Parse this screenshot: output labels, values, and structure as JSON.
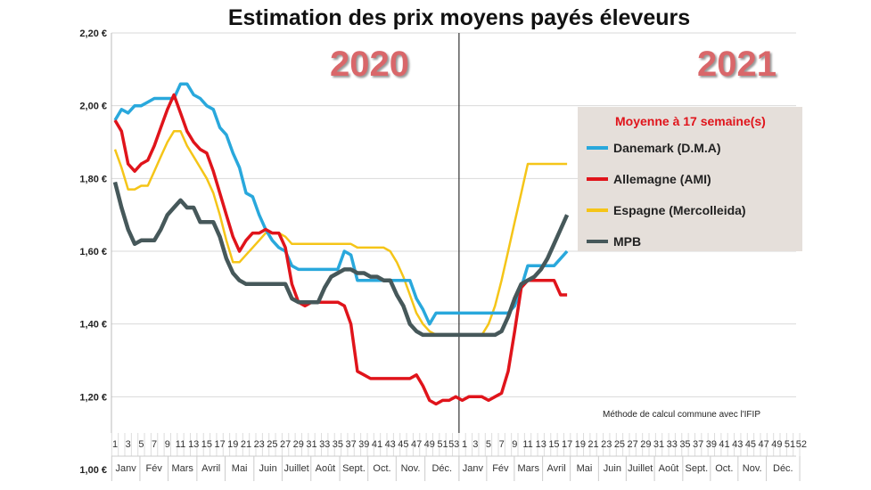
{
  "chart_data": {
    "type": "line",
    "title": "Estimation des prix moyens payés éleveurs",
    "year_labels": [
      "2020",
      "2021"
    ],
    "legend_title": "Moyenne à 17 semaine(s)",
    "legend_placement": "right",
    "annotation": "Méthode de calcul commune avec l'IFIP",
    "ylim": [
      1.0,
      2.2
    ],
    "yticks": [
      "1,00 €",
      "1,20 €",
      "1,40 €",
      "1,60 €",
      "1,80 €",
      "2,00 €",
      "2,20 €"
    ],
    "weeks_2020": 53,
    "weeks_2021": 52,
    "xtick_labels_2020": [
      "1",
      "3",
      "5",
      "7",
      "9",
      "11",
      "13",
      "15",
      "17",
      "19",
      "21",
      "23",
      "25",
      "27",
      "29",
      "31",
      "33",
      "35",
      "37",
      "39",
      "41",
      "43",
      "45",
      "47",
      "49",
      "51",
      "53"
    ],
    "xtick_labels_2021": [
      "1",
      "3",
      "5",
      "7",
      "9",
      "11",
      "13",
      "15",
      "17",
      "19",
      "21",
      "23",
      "25",
      "27",
      "29",
      "31",
      "33",
      "35",
      "37",
      "39",
      "41",
      "43",
      "45",
      "47",
      "49",
      "51",
      "52"
    ],
    "months": [
      "Janv",
      "Fév",
      "Mars",
      "Avril",
      "Mai",
      "Juin",
      "Juillet",
      "Août",
      "Sept.",
      "Oct.",
      "Nov.",
      "Déc."
    ],
    "series": [
      {
        "name": "Danemark (D.M.A)",
        "color": "#29a8dc",
        "values": [
          1.96,
          1.99,
          1.98,
          2.0,
          2.0,
          2.01,
          2.02,
          2.02,
          2.02,
          2.02,
          2.06,
          2.06,
          2.03,
          2.02,
          2.0,
          1.99,
          1.94,
          1.92,
          1.87,
          1.83,
          1.76,
          1.75,
          1.7,
          1.66,
          1.63,
          1.61,
          1.6,
          1.56,
          1.55,
          1.55,
          1.55,
          1.55,
          1.55,
          1.55,
          1.55,
          1.6,
          1.59,
          1.52,
          1.52,
          1.52,
          1.52,
          1.52,
          1.52,
          1.52,
          1.52,
          1.52,
          1.47,
          1.44,
          1.4,
          1.43,
          1.43,
          1.43,
          1.43,
          1.43,
          1.43,
          1.43,
          1.43,
          1.43,
          1.43,
          1.43,
          1.43,
          1.45,
          1.5,
          1.56,
          1.56,
          1.56,
          1.56,
          1.56,
          1.58,
          1.6
        ]
      },
      {
        "name": "Allemagne (AMI)",
        "color": "#e0141b",
        "values": [
          1.96,
          1.93,
          1.84,
          1.82,
          1.84,
          1.85,
          1.89,
          1.94,
          1.99,
          2.03,
          1.98,
          1.93,
          1.9,
          1.88,
          1.87,
          1.82,
          1.76,
          1.7,
          1.64,
          1.6,
          1.63,
          1.65,
          1.65,
          1.66,
          1.65,
          1.65,
          1.61,
          1.51,
          1.46,
          1.45,
          1.46,
          1.46,
          1.46,
          1.46,
          1.46,
          1.45,
          1.4,
          1.27,
          1.26,
          1.25,
          1.25,
          1.25,
          1.25,
          1.25,
          1.25,
          1.25,
          1.26,
          1.23,
          1.19,
          1.18,
          1.19,
          1.19,
          1.2,
          1.19,
          1.2,
          1.2,
          1.2,
          1.19,
          1.2,
          1.21,
          1.27,
          1.38,
          1.5,
          1.52,
          1.52,
          1.52,
          1.52,
          1.52,
          1.48,
          1.48
        ]
      },
      {
        "name": "Espagne (Mercolleida)",
        "color": "#f5c518",
        "values": [
          1.88,
          1.83,
          1.77,
          1.77,
          1.78,
          1.78,
          1.82,
          1.86,
          1.9,
          1.93,
          1.93,
          1.89,
          1.86,
          1.83,
          1.8,
          1.76,
          1.7,
          1.63,
          1.57,
          1.57,
          1.59,
          1.61,
          1.63,
          1.65,
          1.65,
          1.65,
          1.64,
          1.62,
          1.62,
          1.62,
          1.62,
          1.62,
          1.62,
          1.62,
          1.62,
          1.62,
          1.62,
          1.61,
          1.61,
          1.61,
          1.61,
          1.61,
          1.6,
          1.57,
          1.53,
          1.48,
          1.43,
          1.4,
          1.38,
          1.37,
          1.37,
          1.37,
          1.37,
          1.37,
          1.37,
          1.37,
          1.37,
          1.4,
          1.45,
          1.52,
          1.6,
          1.68,
          1.76,
          1.84,
          1.84,
          1.84,
          1.84,
          1.84,
          1.84,
          1.84
        ]
      },
      {
        "name": "MPB",
        "color": "#46585a",
        "values": [
          1.79,
          1.72,
          1.66,
          1.62,
          1.63,
          1.63,
          1.63,
          1.66,
          1.7,
          1.72,
          1.74,
          1.72,
          1.72,
          1.68,
          1.68,
          1.68,
          1.64,
          1.58,
          1.54,
          1.52,
          1.51,
          1.51,
          1.51,
          1.51,
          1.51,
          1.51,
          1.51,
          1.47,
          1.46,
          1.46,
          1.46,
          1.46,
          1.5,
          1.53,
          1.54,
          1.55,
          1.55,
          1.54,
          1.54,
          1.53,
          1.53,
          1.52,
          1.52,
          1.48,
          1.45,
          1.4,
          1.38,
          1.37,
          1.37,
          1.37,
          1.37,
          1.37,
          1.37,
          1.37,
          1.37,
          1.37,
          1.37,
          1.37,
          1.37,
          1.38,
          1.42,
          1.47,
          1.51,
          1.52,
          1.53,
          1.55,
          1.58,
          1.62,
          1.66,
          1.7
        ]
      }
    ]
  }
}
